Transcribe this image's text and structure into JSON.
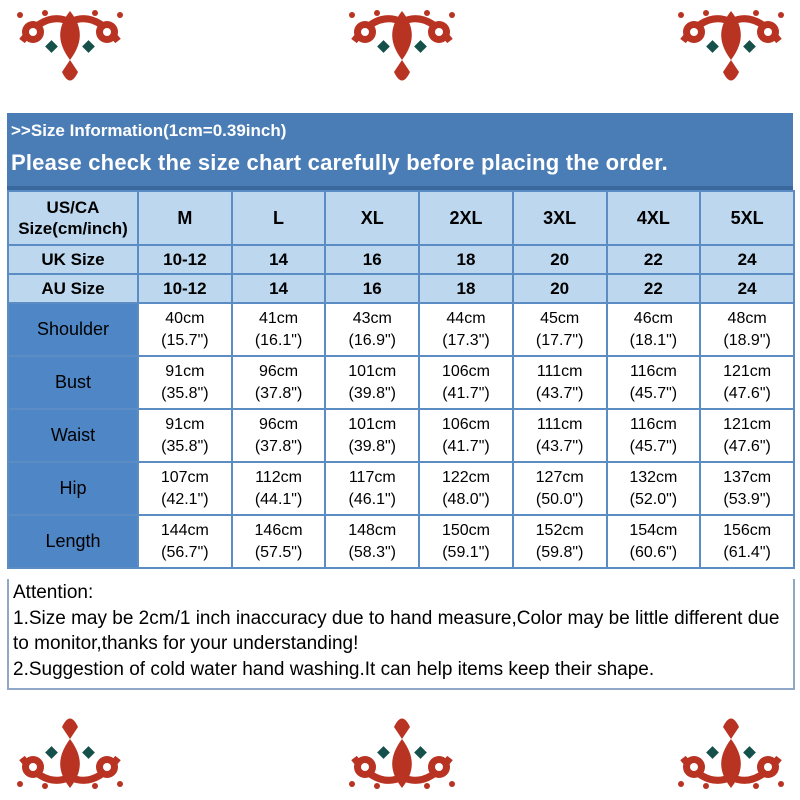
{
  "colors": {
    "banner_blue": "#4a7cb5",
    "light_blue": "#bdd7ee",
    "label_blue": "#4f86c5",
    "grid_blue": "#5b8cc4",
    "ornament_red": "#b93322",
    "ornament_teal": "#15514a"
  },
  "banner": {
    "line1": ">>Size Information(1cm=0.39inch)",
    "line2": "Please check the size chart carefully before placing the order."
  },
  "table": {
    "header": {
      "label_line1": "US/CA",
      "label_line2": "Size(cm/inch)",
      "sizes": [
        "M",
        "L",
        "XL",
        "2XL",
        "3XL",
        "4XL",
        "5XL"
      ]
    },
    "size_rows": [
      {
        "label": "UK Size",
        "values": [
          "10-12",
          "14",
          "16",
          "18",
          "20",
          "22",
          "24"
        ]
      },
      {
        "label": "AU Size",
        "values": [
          "10-12",
          "14",
          "16",
          "18",
          "20",
          "22",
          "24"
        ]
      }
    ],
    "measure_rows": [
      {
        "label": "Shoulder",
        "values": [
          {
            "cm": "40cm",
            "inch": "(15.7\")"
          },
          {
            "cm": "41cm",
            "inch": "(16.1\")"
          },
          {
            "cm": "43cm",
            "inch": "(16.9\")"
          },
          {
            "cm": "44cm",
            "inch": "(17.3\")"
          },
          {
            "cm": "45cm",
            "inch": "(17.7\")"
          },
          {
            "cm": "46cm",
            "inch": "(18.1\")"
          },
          {
            "cm": "48cm",
            "inch": "(18.9\")"
          }
        ]
      },
      {
        "label": "Bust",
        "values": [
          {
            "cm": "91cm",
            "inch": "(35.8\")"
          },
          {
            "cm": "96cm",
            "inch": "(37.8\")"
          },
          {
            "cm": "101cm",
            "inch": "(39.8\")"
          },
          {
            "cm": "106cm",
            "inch": "(41.7\")"
          },
          {
            "cm": "111cm",
            "inch": "(43.7\")"
          },
          {
            "cm": "116cm",
            "inch": "(45.7\")"
          },
          {
            "cm": "121cm",
            "inch": "(47.6\")"
          }
        ]
      },
      {
        "label": "Waist",
        "values": [
          {
            "cm": "91cm",
            "inch": "(35.8\")"
          },
          {
            "cm": "96cm",
            "inch": "(37.8\")"
          },
          {
            "cm": "101cm",
            "inch": "(39.8\")"
          },
          {
            "cm": "106cm",
            "inch": "(41.7\")"
          },
          {
            "cm": "111cm",
            "inch": "(43.7\")"
          },
          {
            "cm": "116cm",
            "inch": "(45.7\")"
          },
          {
            "cm": "121cm",
            "inch": "(47.6\")"
          }
        ]
      },
      {
        "label": "Hip",
        "values": [
          {
            "cm": "107cm",
            "inch": "(42.1\")"
          },
          {
            "cm": "112cm",
            "inch": "(44.1\")"
          },
          {
            "cm": "117cm",
            "inch": "(46.1\")"
          },
          {
            "cm": "122cm",
            "inch": "(48.0\")"
          },
          {
            "cm": "127cm",
            "inch": "(50.0\")"
          },
          {
            "cm": "132cm",
            "inch": "(52.0\")"
          },
          {
            "cm": "137cm",
            "inch": "(53.9\")"
          }
        ]
      },
      {
        "label": "Length",
        "values": [
          {
            "cm": "144cm",
            "inch": "(56.7\")"
          },
          {
            "cm": "146cm",
            "inch": "(57.5\")"
          },
          {
            "cm": "148cm",
            "inch": "(58.3\")"
          },
          {
            "cm": "150cm",
            "inch": "(59.1\")"
          },
          {
            "cm": "152cm",
            "inch": "(59.8\")"
          },
          {
            "cm": "154cm",
            "inch": "(60.6\")"
          },
          {
            "cm": "156cm",
            "inch": "(61.4\")"
          }
        ]
      }
    ]
  },
  "attention": {
    "heading": "Attention:",
    "notes": [
      "1.Size may be 2cm/1 inch inaccuracy due to hand measure,Color may be little different due to monitor,thanks for your understanding!",
      "2.Suggestion of cold water hand washing.It can help items keep their shape."
    ]
  }
}
